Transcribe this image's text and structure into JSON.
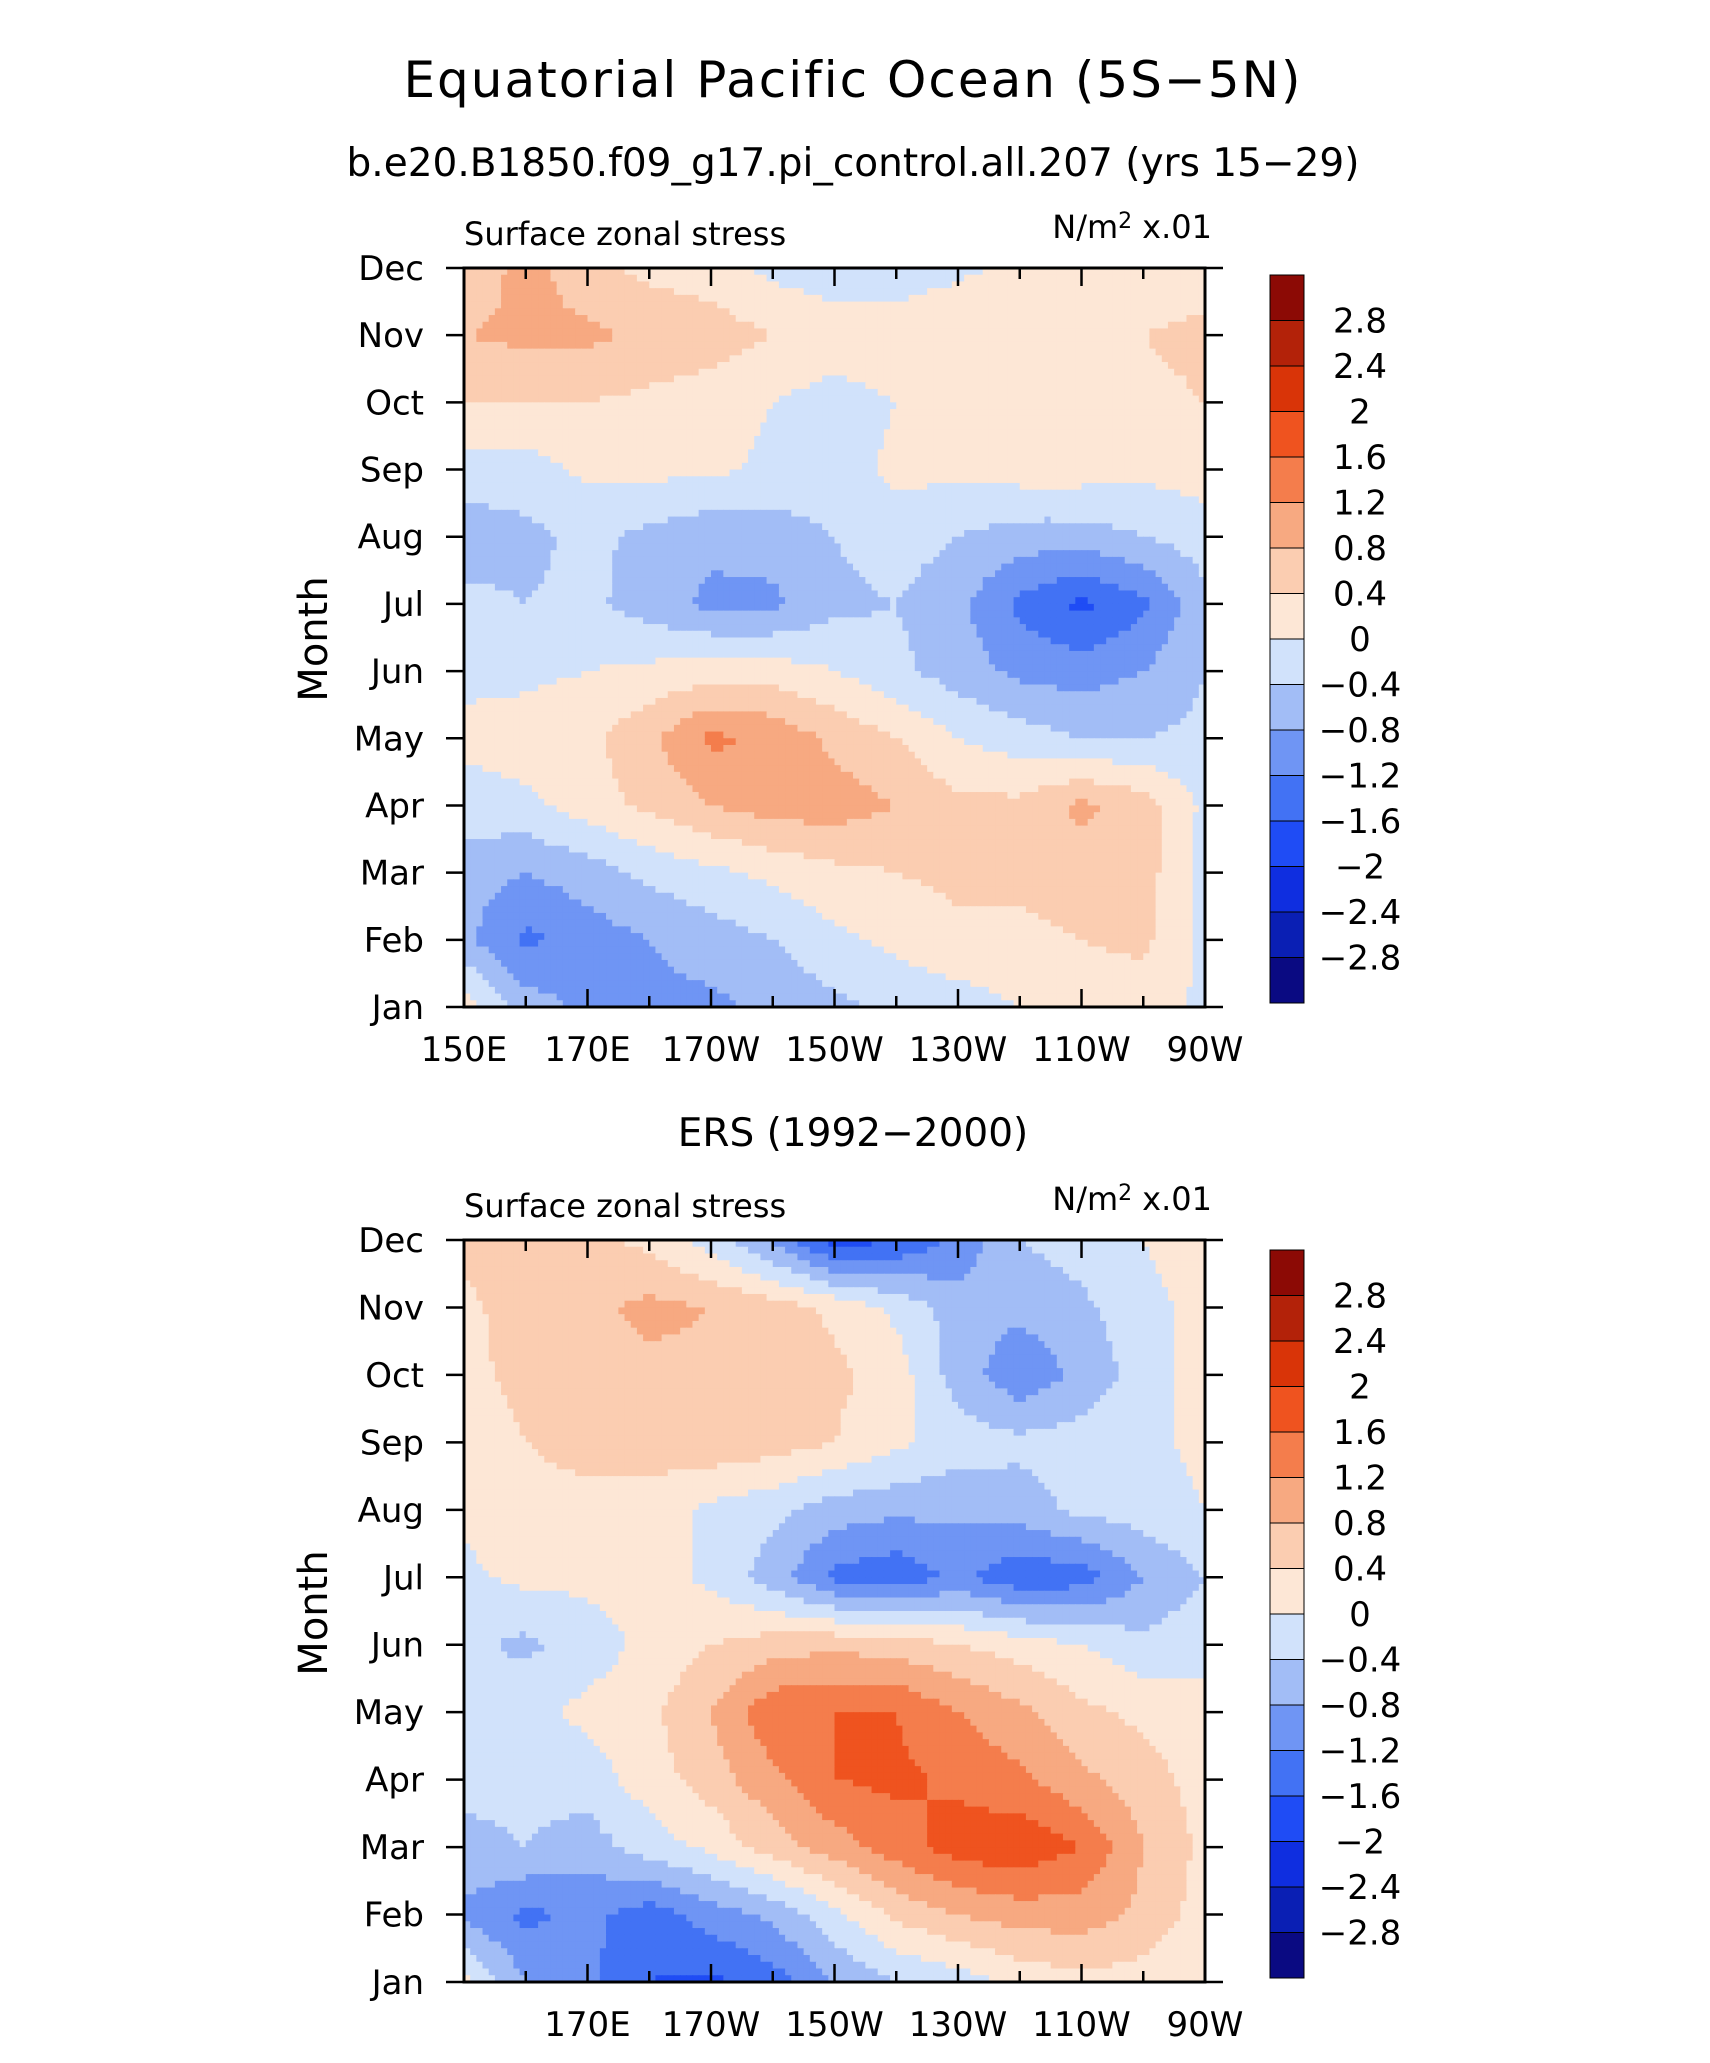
{
  "title": "Equatorial Pacific Ocean (5S−5N)",
  "chart_data": [
    {
      "type": "heatmap",
      "subtitle": "b.e20.B1850.f09_g17.pi_control.all.207 (yrs 15−29)",
      "left_label": "Surface zonal stress",
      "units_base": "N/m",
      "units_exp": "2",
      "units_scale": "x.01",
      "ylabel": "Month",
      "xlim": [
        150,
        270
      ],
      "x_ticks": [
        {
          "value": 150,
          "label": "150E"
        },
        {
          "value": 170,
          "label": "170E"
        },
        {
          "value": 190,
          "label": "170W"
        },
        {
          "value": 210,
          "label": "150W"
        },
        {
          "value": 230,
          "label": "130W"
        },
        {
          "value": 250,
          "label": "110W"
        },
        {
          "value": 270,
          "label": "90W"
        }
      ],
      "y_ticks": [
        "Jan",
        "Feb",
        "Mar",
        "Apr",
        "May",
        "Jun",
        "Jul",
        "Aug",
        "Sep",
        "Oct",
        "Nov",
        "Dec"
      ],
      "grid_x": [
        150,
        160,
        170,
        180,
        190,
        200,
        210,
        220,
        230,
        240,
        250,
        260,
        270
      ],
      "z": [
        [
          0.2,
          -0.6,
          -0.9,
          -0.9,
          -0.9,
          -0.7,
          -0.5,
          -0.3,
          -0.2,
          0.0,
          0.1,
          0.2,
          -0.1
        ],
        [
          -0.7,
          -1.3,
          -1.0,
          -0.8,
          -0.6,
          -0.4,
          -0.1,
          0.1,
          0.3,
          0.3,
          0.4,
          0.5,
          -0.1
        ],
        [
          -0.6,
          -0.8,
          -0.6,
          -0.3,
          -0.1,
          0.1,
          0.3,
          0.4,
          0.5,
          0.5,
          0.6,
          0.6,
          -0.2
        ],
        [
          -0.2,
          -0.1,
          0.2,
          0.5,
          0.8,
          1.0,
          1.0,
          0.8,
          0.5,
          0.5,
          0.9,
          0.6,
          -0.1
        ],
        [
          0.1,
          0.2,
          0.3,
          0.7,
          1.3,
          1.1,
          0.7,
          0.4,
          0.0,
          -0.2,
          -0.4,
          -0.4,
          -0.3
        ],
        [
          -0.1,
          -0.1,
          0.0,
          0.1,
          0.2,
          0.2,
          0.0,
          -0.3,
          -0.6,
          -0.9,
          -1.0,
          -0.8,
          -0.4
        ],
        [
          -0.3,
          -0.4,
          -0.3,
          -0.6,
          -0.9,
          -0.9,
          -0.5,
          -0.4,
          -0.7,
          -1.3,
          -1.7,
          -1.3,
          -0.5
        ],
        [
          -0.6,
          -0.5,
          -0.3,
          -0.5,
          -0.7,
          -0.6,
          -0.4,
          -0.2,
          -0.4,
          -0.6,
          -0.6,
          -0.4,
          -0.2
        ],
        [
          -0.2,
          -0.2,
          0.1,
          0.1,
          0.1,
          -0.1,
          -0.2,
          0.1,
          0.1,
          0.2,
          0.2,
          0.1,
          0.2
        ],
        [
          0.4,
          0.4,
          0.4,
          0.3,
          0.2,
          0.0,
          -0.2,
          0.0,
          0.2,
          0.3,
          0.3,
          0.3,
          0.4
        ],
        [
          0.8,
          0.9,
          0.9,
          0.7,
          0.6,
          0.4,
          0.3,
          0.3,
          0.4,
          0.4,
          0.4,
          0.4,
          0.5
        ],
        [
          0.4,
          1.0,
          0.5,
          0.3,
          0.2,
          -0.1,
          -0.3,
          -0.3,
          -0.1,
          0.1,
          0.2,
          0.2,
          0.2
        ]
      ]
    },
    {
      "type": "heatmap",
      "subtitle": "ERS (1992−2000)",
      "left_label": "Surface zonal stress",
      "units_base": "N/m",
      "units_exp": "2",
      "units_scale": "x.01",
      "ylabel": "Month",
      "xlim": [
        150,
        270
      ],
      "x_ticks": [
        {
          "value": 170,
          "label": "170E"
        },
        {
          "value": 190,
          "label": "170W"
        },
        {
          "value": 210,
          "label": "150W"
        },
        {
          "value": 230,
          "label": "130W"
        },
        {
          "value": 250,
          "label": "110W"
        },
        {
          "value": 270,
          "label": "90W"
        }
      ],
      "y_ticks": [
        "Jan",
        "Feb",
        "Mar",
        "Apr",
        "May",
        "Jun",
        "Jul",
        "Aug",
        "Sep",
        "Oct",
        "Nov",
        "Dec"
      ],
      "grid_x": [
        150,
        160,
        170,
        180,
        190,
        200,
        210,
        220,
        230,
        240,
        250,
        260,
        270
      ],
      "z": [
        [
          0.1,
          -0.8,
          -1.1,
          -1.6,
          -1.7,
          -1.4,
          -0.8,
          -0.4,
          -0.2,
          0.1,
          0.3,
          0.2,
          0.1
        ],
        [
          -0.9,
          -1.3,
          -1.1,
          -1.4,
          -1.0,
          -0.7,
          -0.1,
          0.5,
          0.8,
          1.0,
          1.0,
          0.7,
          0.2
        ],
        [
          -0.5,
          -0.4,
          -0.6,
          -0.2,
          0.1,
          0.6,
          1.0,
          1.4,
          1.8,
          1.9,
          1.6,
          0.8,
          0.3
        ],
        [
          -0.3,
          -0.3,
          -0.2,
          0.2,
          0.6,
          1.1,
          1.6,
          1.7,
          1.5,
          1.3,
          0.9,
          0.6,
          0.2
        ],
        [
          -0.2,
          -0.1,
          0.1,
          0.3,
          0.8,
          1.5,
          1.6,
          1.6,
          1.2,
          0.9,
          0.5,
          0.3,
          0.1
        ],
        [
          -0.3,
          -0.5,
          -0.2,
          0.1,
          0.4,
          0.6,
          0.7,
          0.6,
          0.4,
          0.2,
          0.0,
          -0.3,
          -0.1
        ],
        [
          -0.1,
          0.1,
          0.1,
          0.2,
          -0.1,
          -0.6,
          -1.3,
          -1.5,
          -1.1,
          -1.5,
          -1.4,
          -0.8,
          -0.4
        ],
        [
          0.1,
          0.3,
          0.3,
          0.2,
          -0.1,
          -0.3,
          -0.6,
          -0.7,
          -0.7,
          -0.6,
          -0.3,
          -0.2,
          0.0
        ],
        [
          0.2,
          0.4,
          0.5,
          0.6,
          0.7,
          0.6,
          0.4,
          0.1,
          -0.2,
          -0.3,
          -0.2,
          -0.1,
          0.1
        ],
        [
          0.3,
          0.5,
          0.6,
          0.7,
          0.7,
          0.8,
          0.5,
          0.2,
          -0.6,
          -1.1,
          -0.7,
          -0.2,
          0.2
        ],
        [
          0.3,
          0.6,
          0.7,
          0.9,
          0.8,
          0.6,
          0.3,
          -0.1,
          -0.6,
          -0.7,
          -0.5,
          -0.1,
          0.1
        ],
        [
          0.5,
          0.8,
          0.5,
          0.3,
          -0.2,
          -0.9,
          -1.8,
          -1.6,
          -1.1,
          -0.4,
          -0.2,
          0.0,
          0.2
        ]
      ]
    }
  ],
  "colorbar": {
    "levels": [
      -2.8,
      -2.4,
      -2.0,
      -1.6,
      -1.2,
      -0.8,
      -0.4,
      0,
      0.4,
      0.8,
      1.2,
      1.6,
      2.0,
      2.4,
      2.8
    ],
    "labels": [
      "−2.8",
      "−2.4",
      "−2",
      "−1.6",
      "−1.2",
      "−0.8",
      "−0.4",
      "0",
      "0.4",
      "0.8",
      "1.2",
      "1.6",
      "2",
      "2.4",
      "2.8"
    ],
    "colors": [
      "#0a0a82",
      "#0a1fb4",
      "#0f2ee0",
      "#1f4cf5",
      "#4272f4",
      "#6f95f4",
      "#a2bdf6",
      "#d1e2fb",
      "#fde7d6",
      "#fbcdb1",
      "#f7a981",
      "#f47d4c",
      "#ef531f",
      "#d93408",
      "#b32209",
      "#8c0a05"
    ]
  }
}
